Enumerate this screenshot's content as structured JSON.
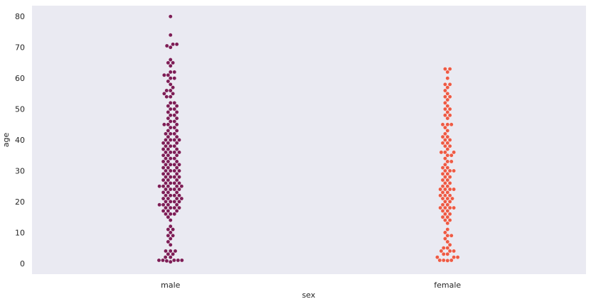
{
  "chart_data": {
    "type": "scatter",
    "subtype": "swarm",
    "title": "",
    "xlabel": "sex",
    "ylabel": "age",
    "categories": [
      "male",
      "female"
    ],
    "ylim": [
      -3.5,
      83.5
    ],
    "yticks": [
      0,
      10,
      20,
      30,
      40,
      50,
      60,
      70,
      80
    ],
    "grid": false,
    "background": "#eaeaf2",
    "colors": {
      "male": "#7d1d56",
      "female": "#ee5a44"
    },
    "series": [
      {
        "name": "male",
        "values": [
          80,
          74,
          71,
          71,
          70.5,
          70,
          66,
          65,
          65,
          64,
          62,
          62,
          61,
          61,
          60,
          60,
          59,
          58,
          57,
          56,
          56,
          55,
          55,
          54,
          54,
          52,
          52,
          51,
          51,
          50,
          50,
          49,
          49,
          48,
          48,
          47,
          47,
          46,
          46,
          45,
          45,
          45,
          44,
          44,
          43,
          43,
          42,
          42,
          42,
          41,
          41,
          40,
          40,
          40,
          40,
          39,
          39,
          39,
          38,
          38,
          38,
          37,
          37,
          37,
          36,
          36,
          36,
          36,
          35,
          35,
          35,
          34,
          34,
          34,
          33,
          33,
          33,
          32,
          32,
          32,
          32,
          31,
          31,
          31,
          30,
          30,
          30,
          30,
          29,
          29,
          29,
          28,
          28,
          28,
          28,
          27,
          27,
          27,
          26,
          26,
          26,
          26,
          25,
          25,
          25,
          25,
          25,
          24,
          24,
          24,
          24,
          23,
          23,
          23,
          22,
          22,
          22,
          22,
          21,
          21,
          21,
          21,
          20,
          20,
          20,
          20,
          19,
          19,
          19,
          19,
          18,
          18,
          18,
          18,
          17,
          17,
          17,
          16,
          16,
          16,
          15,
          14,
          12,
          11,
          11,
          10,
          9,
          9,
          8,
          7,
          6,
          4,
          4,
          4,
          3,
          3,
          2,
          2,
          1,
          1,
          1,
          1,
          1,
          0.8,
          0.5
        ]
      },
      {
        "name": "female",
        "values": [
          63,
          63,
          62,
          60,
          58,
          58,
          57,
          56,
          55,
          54,
          54,
          53,
          52,
          51,
          50,
          50,
          49,
          48,
          48,
          47,
          45,
          45,
          45,
          44,
          43,
          42,
          41,
          41,
          40,
          40,
          39,
          39,
          38,
          38,
          37,
          36,
          36,
          36,
          35,
          35,
          34,
          33,
          33,
          32,
          31,
          31,
          30,
          30,
          30,
          29,
          29,
          28,
          28,
          27,
          27,
          26,
          26,
          25,
          25,
          24,
          24,
          24,
          24,
          23,
          23,
          22,
          22,
          22,
          21,
          21,
          21,
          20,
          20,
          19,
          19,
          18,
          18,
          18,
          18,
          17,
          17,
          16,
          16,
          15,
          15,
          14,
          14,
          13,
          11,
          10,
          9,
          9,
          8,
          7,
          6,
          5,
          5,
          4,
          4,
          4,
          3,
          3,
          2,
          2,
          2,
          1,
          1,
          1,
          0.9
        ]
      }
    ]
  }
}
